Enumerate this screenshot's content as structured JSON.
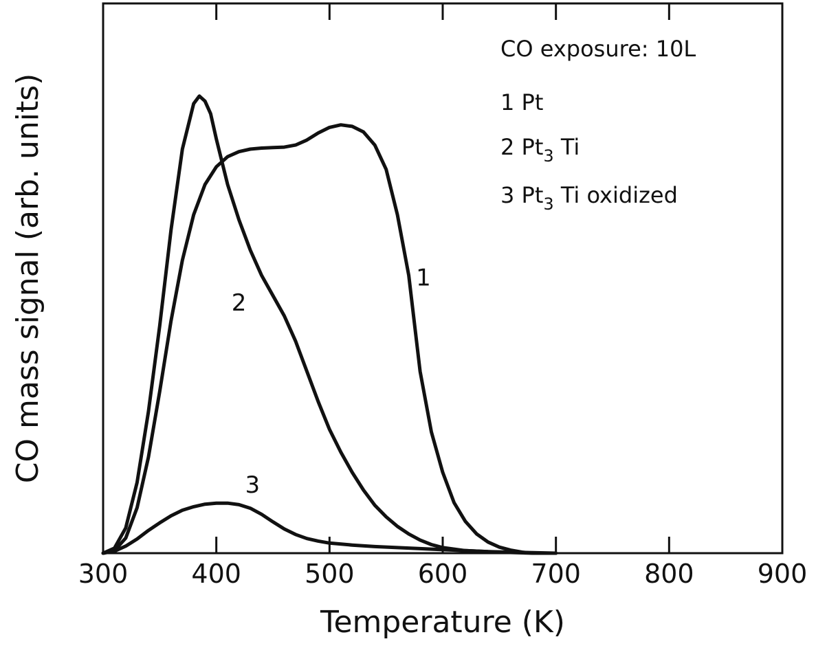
{
  "chart_data": {
    "type": "line",
    "xlabel": "Temperature (K)",
    "ylabel": "CO mass signal (arb. units)",
    "xlim": [
      300,
      900
    ],
    "ylim": [
      0,
      1
    ],
    "xticks": [
      300,
      400,
      500,
      600,
      700,
      800,
      900
    ],
    "grid": false,
    "legend": {
      "placement": "top-right",
      "title": "CO exposure: 10L",
      "entries": [
        {
          "num": "1",
          "base": "Pt",
          "sub": "",
          "rest": ""
        },
        {
          "num": "2",
          "base": "Pt",
          "sub": "3",
          "rest": "Ti"
        },
        {
          "num": "3",
          "base": "Pt",
          "sub": "3",
          "rest": "Ti oxidized"
        }
      ]
    },
    "series": [
      {
        "name": "1",
        "label_at": [
          583,
          0.53
        ],
        "points": [
          [
            300,
            0
          ],
          [
            310,
            0.005
          ],
          [
            320,
            0.03
          ],
          [
            330,
            0.09
          ],
          [
            340,
            0.19
          ],
          [
            350,
            0.32
          ],
          [
            360,
            0.46
          ],
          [
            370,
            0.58
          ],
          [
            380,
            0.67
          ],
          [
            390,
            0.73
          ],
          [
            400,
            0.765
          ],
          [
            410,
            0.785
          ],
          [
            420,
            0.795
          ],
          [
            430,
            0.8
          ],
          [
            440,
            0.802
          ],
          [
            450,
            0.803
          ],
          [
            460,
            0.804
          ],
          [
            470,
            0.808
          ],
          [
            480,
            0.818
          ],
          [
            490,
            0.832
          ],
          [
            500,
            0.843
          ],
          [
            510,
            0.848
          ],
          [
            520,
            0.845
          ],
          [
            530,
            0.834
          ],
          [
            540,
            0.808
          ],
          [
            550,
            0.76
          ],
          [
            560,
            0.67
          ],
          [
            570,
            0.55
          ],
          [
            580,
            0.36
          ],
          [
            590,
            0.24
          ],
          [
            600,
            0.16
          ],
          [
            610,
            0.1
          ],
          [
            620,
            0.063
          ],
          [
            630,
            0.038
          ],
          [
            640,
            0.022
          ],
          [
            650,
            0.012
          ],
          [
            660,
            0.006
          ],
          [
            670,
            0.002
          ],
          [
            680,
            0
          ],
          [
            700,
            0
          ]
        ]
      },
      {
        "name": "2",
        "label_at": [
          420,
          0.48
        ],
        "points": [
          [
            300,
            0
          ],
          [
            310,
            0.01
          ],
          [
            320,
            0.05
          ],
          [
            330,
            0.14
          ],
          [
            340,
            0.28
          ],
          [
            350,
            0.45
          ],
          [
            360,
            0.64
          ],
          [
            370,
            0.8
          ],
          [
            380,
            0.89
          ],
          [
            385,
            0.905
          ],
          [
            390,
            0.895
          ],
          [
            395,
            0.87
          ],
          [
            400,
            0.82
          ],
          [
            410,
            0.73
          ],
          [
            420,
            0.66
          ],
          [
            430,
            0.6
          ],
          [
            440,
            0.55
          ],
          [
            450,
            0.51
          ],
          [
            460,
            0.47
          ],
          [
            470,
            0.42
          ],
          [
            480,
            0.36
          ],
          [
            490,
            0.3
          ],
          [
            500,
            0.245
          ],
          [
            510,
            0.2
          ],
          [
            520,
            0.16
          ],
          [
            530,
            0.125
          ],
          [
            540,
            0.095
          ],
          [
            550,
            0.072
          ],
          [
            560,
            0.053
          ],
          [
            570,
            0.038
          ],
          [
            580,
            0.026
          ],
          [
            590,
            0.017
          ],
          [
            600,
            0.011
          ],
          [
            620,
            0.005
          ],
          [
            650,
            0.002
          ],
          [
            680,
            0
          ],
          [
            700,
            0
          ]
        ]
      },
      {
        "name": "3",
        "label_at": [
          432,
          0.12
        ],
        "points": [
          [
            300,
            0
          ],
          [
            310,
            0.004
          ],
          [
            320,
            0.014
          ],
          [
            330,
            0.028
          ],
          [
            340,
            0.045
          ],
          [
            350,
            0.06
          ],
          [
            360,
            0.074
          ],
          [
            370,
            0.085
          ],
          [
            380,
            0.092
          ],
          [
            390,
            0.097
          ],
          [
            400,
            0.099
          ],
          [
            410,
            0.099
          ],
          [
            420,
            0.096
          ],
          [
            430,
            0.089
          ],
          [
            440,
            0.077
          ],
          [
            450,
            0.062
          ],
          [
            460,
            0.048
          ],
          [
            470,
            0.037
          ],
          [
            480,
            0.029
          ],
          [
            490,
            0.024
          ],
          [
            500,
            0.02
          ],
          [
            520,
            0.016
          ],
          [
            540,
            0.013
          ],
          [
            560,
            0.011
          ],
          [
            580,
            0.009
          ],
          [
            600,
            0.007
          ],
          [
            620,
            0.005
          ],
          [
            640,
            0.003
          ],
          [
            660,
            0.002
          ],
          [
            680,
            0.001
          ],
          [
            700,
            0
          ]
        ]
      }
    ]
  }
}
